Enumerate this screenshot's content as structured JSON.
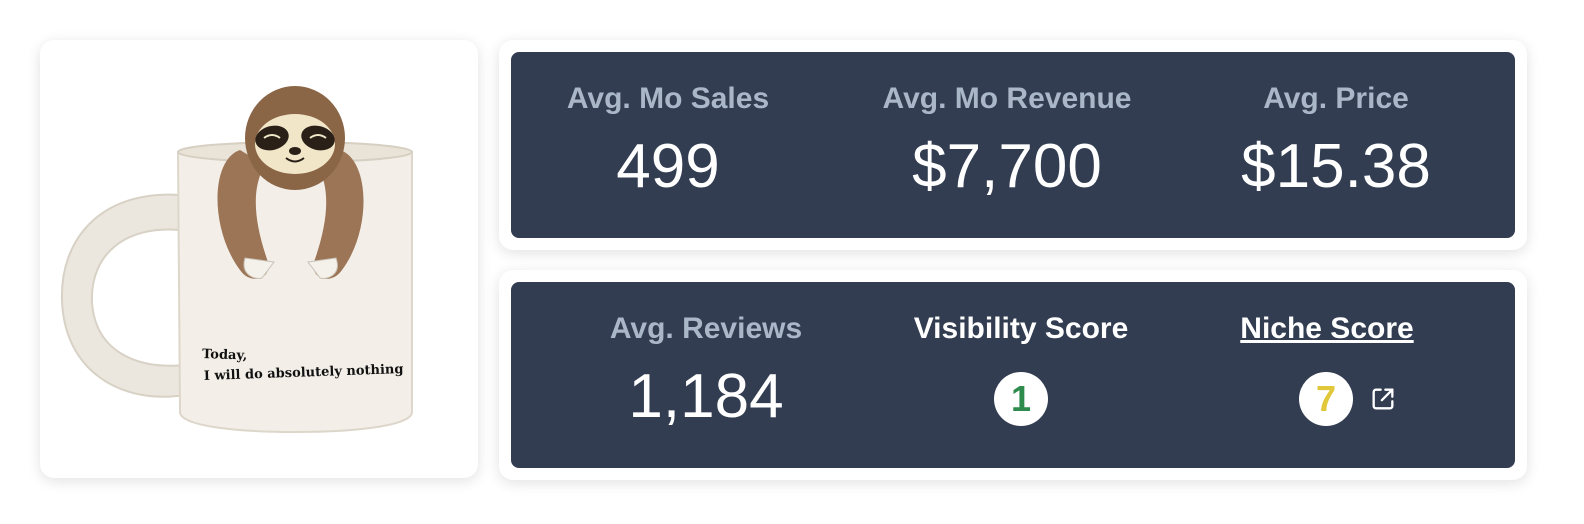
{
  "product": {
    "image_alt": "Sloth coffee mug",
    "mug_text_line1": "Today,",
    "mug_text_line2": "I will do absolutely nothing"
  },
  "top_panel": {
    "stats": [
      {
        "label": "Avg. Mo Sales",
        "value": "499"
      },
      {
        "label": "Avg. Mo Revenue",
        "value": "$7,700"
      },
      {
        "label": "Avg. Price",
        "value": "$15.38"
      }
    ]
  },
  "bottom_panel": {
    "reviews": {
      "label": "Avg. Reviews",
      "value": "1,184"
    },
    "visibility": {
      "label": "Visibility Score",
      "value": "1",
      "color": "#2e8b4e"
    },
    "niche": {
      "label": "Niche Score",
      "value": "7",
      "color": "#e0c83a",
      "icon": "external-link-icon"
    }
  },
  "colors": {
    "panel_bg": "#323d51",
    "label_muted": "#a9b7c8",
    "text_white": "#ffffff"
  }
}
